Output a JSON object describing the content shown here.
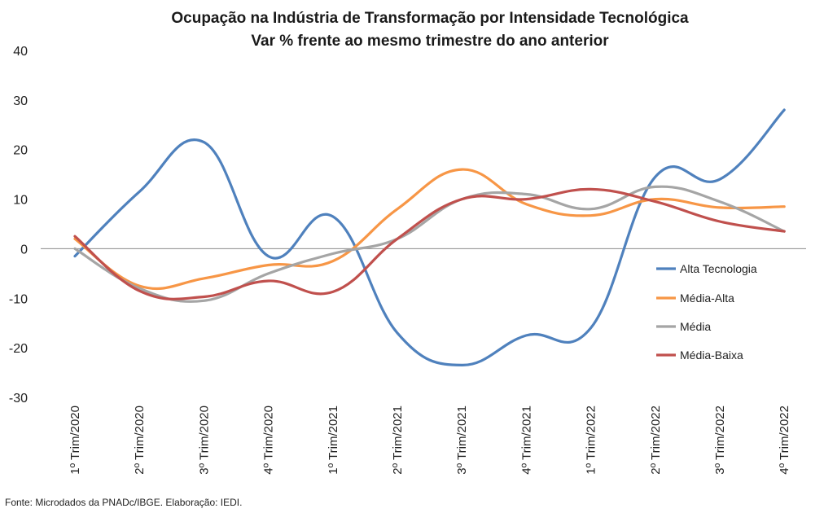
{
  "chart_data": {
    "type": "line",
    "title": "Ocupação na Indústria de Transformação por Intensidade Tecnológica",
    "subtitle": "Var % frente ao mesmo trimestre do ano anterior",
    "categories": [
      "1º Trim/2020",
      "2º Trim/2020",
      "3º Trim/2020",
      "4º Trim/2020",
      "1º Trim/2021",
      "2º Trim/2021",
      "3º Trim/2021",
      "4º Trim/2021",
      "1º Trim/2022",
      "2º Trim/2022",
      "3º Trim/2022",
      "4º Trim/2022"
    ],
    "series": [
      {
        "name": "Alta Tecnologia",
        "color": "#4f81bd",
        "values": [
          -1.5,
          11.5,
          21.5,
          -1.5,
          6.5,
          -17,
          -23.5,
          -17.5,
          -16,
          14.5,
          14,
          28
        ]
      },
      {
        "name": "Média-Alta",
        "color": "#f79646",
        "values": [
          2,
          -7.5,
          -6,
          -3.3,
          -2.5,
          8,
          16,
          9,
          6.7,
          10,
          8.3,
          8.5
        ]
      },
      {
        "name": "Média",
        "color": "#a5a5a5",
        "values": [
          0,
          -8,
          -10.5,
          -5,
          -1,
          2,
          10,
          11,
          8,
          12.5,
          9.5,
          3.5
        ]
      },
      {
        "name": "Média-Baixa",
        "color": "#c0504d",
        "values": [
          2.5,
          -8.5,
          -9.7,
          -6.5,
          -8.7,
          2,
          10,
          10,
          12,
          9.5,
          5.5,
          3.5
        ]
      }
    ],
    "ylim": [
      -30,
      40
    ],
    "yticks": [
      40,
      30,
      20,
      10,
      0,
      -10,
      -20,
      -30
    ],
    "grid": false,
    "legend": "right"
  },
  "source_note": "Fonte: Microdados da PNADc/IBGE. Elaboração: IEDI."
}
